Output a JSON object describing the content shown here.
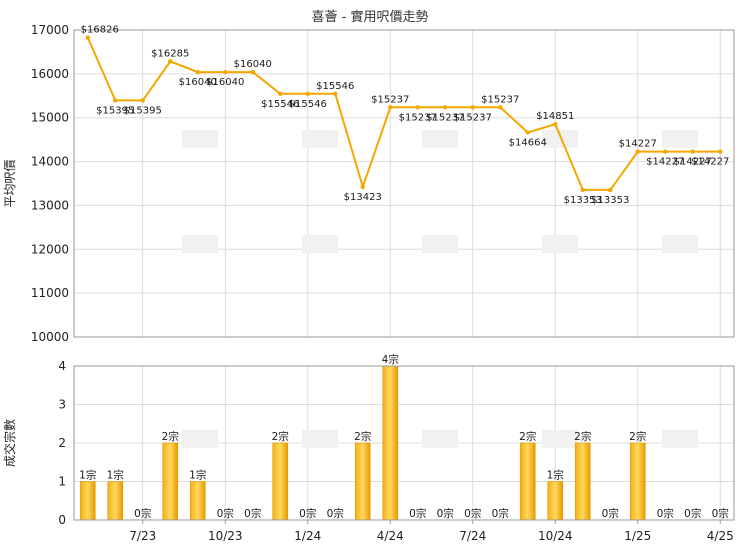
{
  "chart_data": [
    {
      "type": "line",
      "title": "喜薈 - 實用呎價走勢",
      "ylabel": "平均呎價",
      "ylim": [
        10000,
        17000
      ],
      "yticks": [
        "17000",
        "16000",
        "15000",
        "14000",
        "13000",
        "12000",
        "11000",
        "10000"
      ],
      "x_tick_labels": [
        "7/23",
        "10/23",
        "1/24",
        "4/24",
        "7/24",
        "10/24",
        "1/25",
        "4/25"
      ],
      "color": "#f5a700",
      "values": [
        16826,
        15395,
        15395,
        16285,
        16040,
        16040,
        16040,
        15546,
        15546,
        15546,
        13423,
        15237,
        15237,
        15237,
        15237,
        15237,
        14664,
        14851,
        13353,
        13353,
        14227,
        14227,
        14227,
        14227
      ],
      "labels": [
        "$16826",
        "$15395",
        "$15395",
        "$16285",
        "$16040",
        "$16040",
        "$16040",
        "$15546",
        "$15546",
        "$15546",
        "$13423",
        "$15237",
        "$15237",
        "$15237",
        "$15237",
        "$15237",
        "$14664",
        "$14851",
        "$13353",
        "$13353",
        "$14227",
        "$14227",
        "$14227",
        "$14227"
      ]
    },
    {
      "type": "bar",
      "ylabel": "成交宗數",
      "ylim": [
        0,
        4
      ],
      "yticks": [
        "4",
        "3",
        "2",
        "1",
        "0"
      ],
      "x_tick_labels": [
        "7/23",
        "10/23",
        "1/24",
        "4/24",
        "7/24",
        "10/24",
        "1/25",
        "4/25"
      ],
      "color": "#f5a700",
      "values": [
        1,
        1,
        0,
        2,
        1,
        0,
        0,
        2,
        0,
        0,
        2,
        4,
        0,
        0,
        0,
        0,
        2,
        1,
        2,
        0,
        2,
        0,
        0,
        0
      ],
      "labels": [
        "1宗",
        "1宗",
        "0宗",
        "2宗",
        "1宗",
        "0宗",
        "0宗",
        "2宗",
        "0宗",
        "0宗",
        "2宗",
        "4宗",
        "0宗",
        "0宗",
        "0宗",
        "0宗",
        "2宗",
        "1宗",
        "2宗",
        "0宗",
        "2宗",
        "0宗",
        "0宗",
        "0宗"
      ]
    }
  ]
}
